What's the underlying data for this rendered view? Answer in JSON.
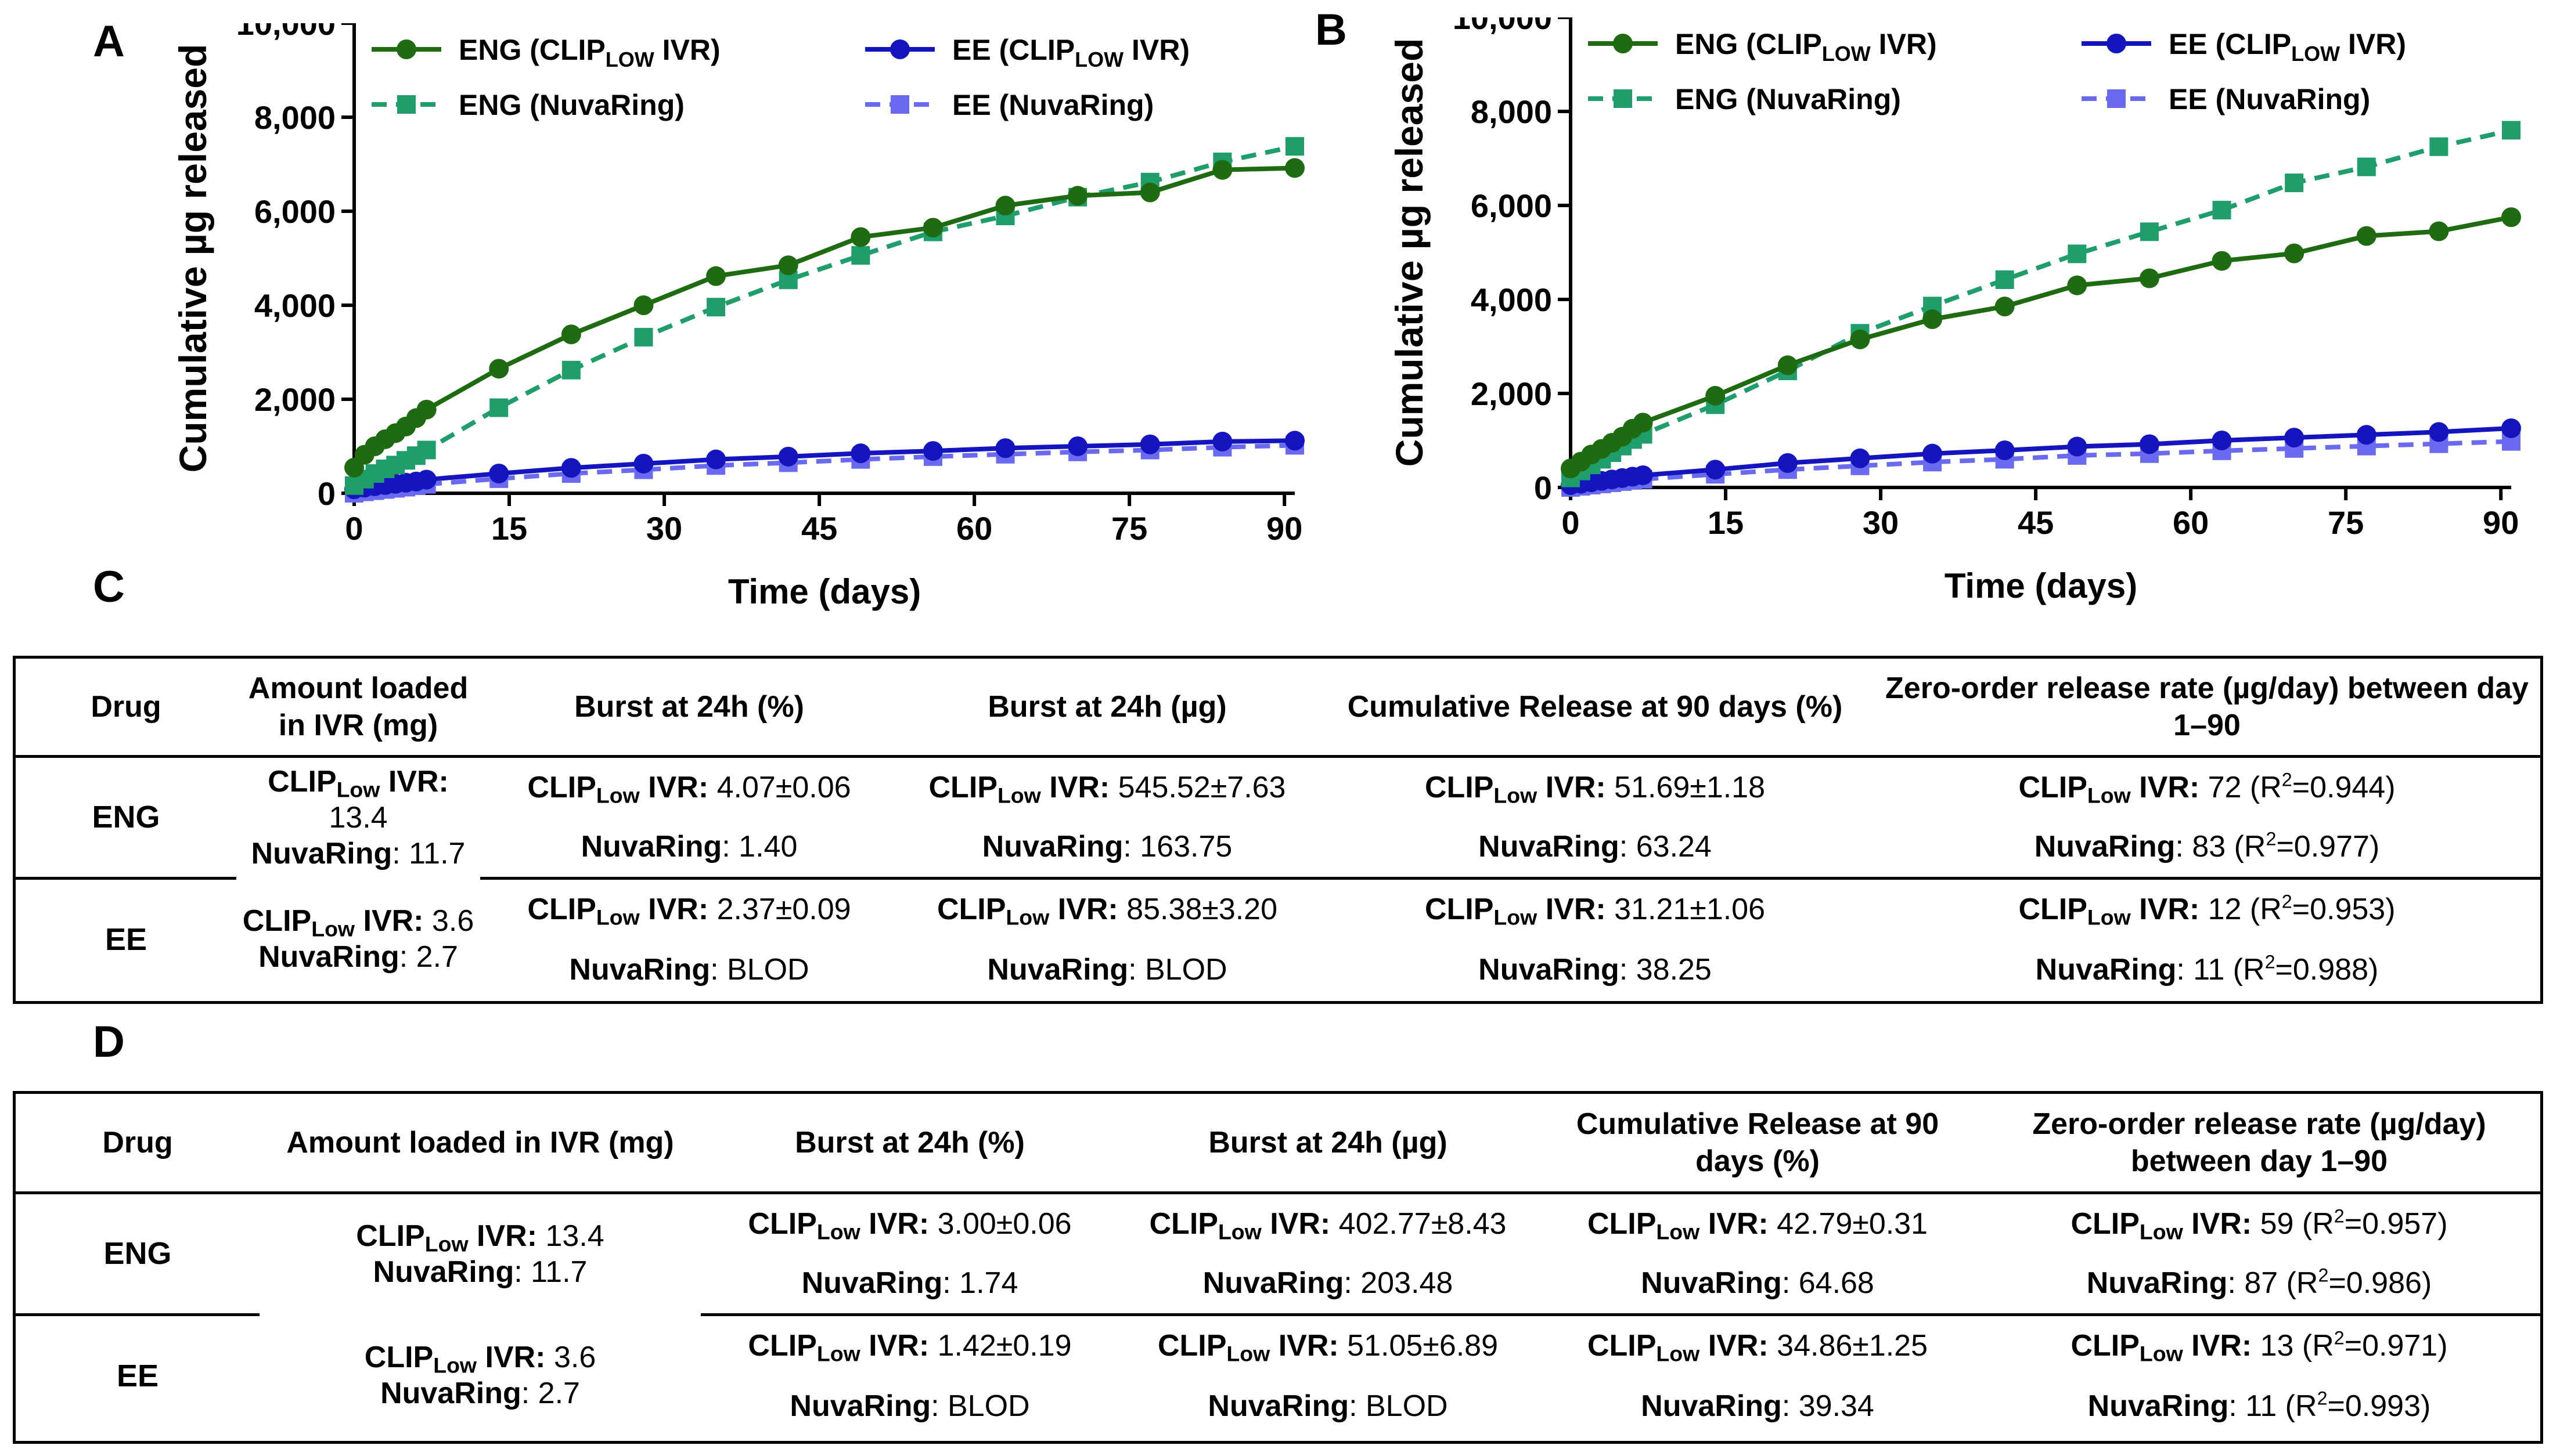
{
  "panels": {
    "a": "A",
    "b": "B",
    "c": "C",
    "d": "D"
  },
  "chart_data": [
    {
      "type": "line",
      "panel": "A",
      "xlabel": "Time (days)",
      "ylabel": "Cumulative µg released",
      "xlim": [
        0,
        91
      ],
      "ylim": [
        0,
        10000
      ],
      "xticks": [
        0,
        15,
        30,
        45,
        60,
        75,
        90
      ],
      "xtick_labels": [
        "0",
        "15",
        "30",
        "45",
        "60",
        "75",
        "90"
      ],
      "yticks": [
        0,
        2000,
        4000,
        6000,
        8000,
        10000
      ],
      "ytick_labels": [
        "0",
        "2,000",
        "4,000",
        "6,000",
        "8,000",
        "10,000"
      ],
      "legend": {
        "placement": "top",
        "entries": [
          {
            "series": 0,
            "main": "ENG (CLIP",
            "sub": "LOW",
            "post": " IVR)"
          },
          {
            "series": 2,
            "main": "EE (CLIP",
            "sub": "LOW",
            "post": " IVR)"
          },
          {
            "series": 1,
            "main": "ENG (NuvaRing)",
            "sub": "",
            "post": ""
          },
          {
            "series": 3,
            "main": "EE (NuvaRing)",
            "sub": "",
            "post": ""
          }
        ]
      },
      "series": [
        {
          "name": "ENG (CLIPLOW IVR)",
          "color": "#1e6b12",
          "marker": "circle",
          "dash": false,
          "x": [
            0,
            1,
            2,
            3,
            4,
            5,
            6,
            7,
            14,
            21,
            28,
            35,
            42,
            49,
            56,
            63,
            70,
            77,
            84,
            91
          ],
          "y": [
            546,
            820,
            1000,
            1150,
            1280,
            1420,
            1600,
            1780,
            2650,
            3380,
            4000,
            4620,
            4850,
            5450,
            5650,
            6120,
            6330,
            6400,
            6880,
            6920
          ]
        },
        {
          "name": "ENG (NuvaRing)",
          "color": "#1f9e6b",
          "marker": "square",
          "dash": true,
          "x": [
            0,
            1,
            2,
            3,
            4,
            5,
            6,
            7,
            14,
            21,
            28,
            35,
            42,
            49,
            56,
            63,
            70,
            77,
            84,
            91
          ],
          "y": [
            164,
            300,
            420,
            520,
            600,
            700,
            800,
            920,
            1820,
            2620,
            3320,
            3960,
            4540,
            5060,
            5560,
            5900,
            6300,
            6620,
            7050,
            7380
          ]
        },
        {
          "name": "EE (CLIPLOW IVR)",
          "color": "#1515c0",
          "marker": "circle",
          "dash": false,
          "x": [
            0,
            1,
            2,
            3,
            4,
            5,
            6,
            7,
            14,
            21,
            28,
            35,
            42,
            49,
            56,
            63,
            70,
            77,
            84,
            91
          ],
          "y": [
            85,
            120,
            150,
            175,
            200,
            225,
            250,
            290,
            420,
            540,
            630,
            720,
            780,
            850,
            900,
            960,
            1000,
            1040,
            1100,
            1120
          ]
        },
        {
          "name": "EE (NuvaRing)",
          "color": "#6a6af0",
          "marker": "square",
          "dash": true,
          "x": [
            0,
            1,
            2,
            3,
            4,
            5,
            6,
            7,
            14,
            21,
            28,
            35,
            42,
            49,
            56,
            63,
            70,
            77,
            84,
            91
          ],
          "y": [
            0,
            30,
            55,
            80,
            105,
            130,
            160,
            190,
            310,
            420,
            500,
            590,
            650,
            720,
            780,
            830,
            880,
            920,
            980,
            1020
          ]
        }
      ]
    },
    {
      "type": "line",
      "panel": "B",
      "xlabel": "Time (days)",
      "ylabel": "Cumulative µg released",
      "xlim": [
        0,
        91
      ],
      "ylim": [
        0,
        10000
      ],
      "xticks": [
        0,
        15,
        30,
        45,
        60,
        75,
        90
      ],
      "xtick_labels": [
        "0",
        "15",
        "30",
        "45",
        "60",
        "75",
        "90"
      ],
      "yticks": [
        0,
        2000,
        4000,
        6000,
        8000,
        10000
      ],
      "ytick_labels": [
        "0",
        "2,000",
        "4,000",
        "6,000",
        "8,000",
        "10,000"
      ],
      "legend": {
        "placement": "top",
        "entries": [
          {
            "series": 0,
            "main": "ENG (CLIP",
            "sub": "LOW",
            "post": " IVR)"
          },
          {
            "series": 2,
            "main": "EE (CLIP",
            "sub": "LOW",
            "post": " IVR)"
          },
          {
            "series": 1,
            "main": "ENG (NuvaRing)",
            "sub": "",
            "post": ""
          },
          {
            "series": 3,
            "main": "EE (NuvaRing)",
            "sub": "",
            "post": ""
          }
        ]
      },
      "series": [
        {
          "name": "ENG (CLIPLOW IVR)",
          "color": "#1e6b12",
          "marker": "circle",
          "dash": false,
          "x": [
            0,
            1,
            2,
            3,
            4,
            5,
            6,
            7,
            14,
            21,
            28,
            35,
            42,
            49,
            56,
            63,
            70,
            77,
            84,
            91
          ],
          "y": [
            403,
            550,
            700,
            820,
            950,
            1080,
            1250,
            1380,
            1950,
            2600,
            3150,
            3580,
            3850,
            4300,
            4450,
            4820,
            4980,
            5350,
            5450,
            5750
          ]
        },
        {
          "name": "ENG (NuvaRing)",
          "color": "#1f9e6b",
          "marker": "square",
          "dash": true,
          "x": [
            0,
            1,
            2,
            3,
            4,
            5,
            6,
            7,
            14,
            21,
            28,
            35,
            42,
            49,
            56,
            63,
            70,
            77,
            84,
            91
          ],
          "y": [
            203,
            350,
            480,
            600,
            740,
            880,
            1020,
            1130,
            1760,
            2480,
            3280,
            3860,
            4420,
            4970,
            5440,
            5900,
            6480,
            6820,
            7250,
            7600
          ]
        },
        {
          "name": "EE (CLIPLOW IVR)",
          "color": "#1515c0",
          "marker": "circle",
          "dash": false,
          "x": [
            0,
            1,
            2,
            3,
            4,
            5,
            6,
            7,
            14,
            21,
            28,
            35,
            42,
            49,
            56,
            63,
            70,
            77,
            84,
            91
          ],
          "y": [
            51,
            80,
            110,
            140,
            170,
            200,
            230,
            260,
            380,
            520,
            620,
            720,
            790,
            870,
            920,
            1000,
            1060,
            1120,
            1180,
            1260
          ]
        },
        {
          "name": "EE (NuvaRing)",
          "color": "#6a6af0",
          "marker": "square",
          "dash": true,
          "x": [
            0,
            1,
            2,
            3,
            4,
            5,
            6,
            7,
            14,
            21,
            28,
            35,
            42,
            49,
            56,
            63,
            70,
            77,
            84,
            91
          ],
          "y": [
            0,
            25,
            50,
            75,
            100,
            125,
            150,
            175,
            280,
            380,
            460,
            540,
            600,
            680,
            720,
            780,
            830,
            880,
            930,
            980
          ]
        }
      ]
    }
  ],
  "tables": {
    "c": {
      "headers": [
        "Drug",
        "Amount loaded in IVR (mg)",
        "Burst at 24h (%)",
        "Burst at 24h (µg)",
        "Cumulative Release at 90 days (%)",
        "Zero-order release rate (µg/day) between day 1–90"
      ],
      "drugs": [
        "ENG",
        "EE"
      ],
      "clip_main": "CLIP",
      "clip_sub": "Low",
      "clip_post": " IVR:",
      "nuva": "NuvaRing",
      "eng": {
        "amount_clip": " 13.4",
        "amount_nuva": ": 11.7",
        "clip": [
          " 4.07±0.06",
          " 545.52±7.63",
          " 51.69±1.18",
          " 72 (R2=0.944)"
        ],
        "nuva": [
          ": 1.40",
          ": 163.75",
          ": 63.24",
          ": 83 (R2=0.977)"
        ]
      },
      "ee": {
        "amount_clip": " 3.6",
        "amount_nuva": ": 2.7",
        "clip": [
          " 2.37±0.09",
          " 85.38±3.20",
          " 31.21±1.06",
          " 12 (R2=0.953)"
        ],
        "nuva": [
          ": BLOD",
          ": BLOD",
          ": 38.25",
          ": 11 (R2=0.988)"
        ]
      }
    },
    "d": {
      "headers": [
        "Drug",
        "Amount loaded in IVR (mg)",
        "Burst at 24h (%)",
        "Burst at 24h (µg)",
        "Cumulative Release at 90 days (%)",
        "Zero-order release rate (µg/day) between day 1–90"
      ],
      "drugs": [
        "ENG",
        "EE"
      ],
      "clip_main": "CLIP",
      "clip_sub": "Low",
      "clip_post": " IVR:",
      "nuva": "NuvaRing",
      "eng": {
        "amount_clip": " 13.4",
        "amount_nuva": ": 11.7",
        "clip": [
          " 3.00±0.06",
          " 402.77±8.43",
          " 42.79±0.31",
          " 59 (R2=0.957)"
        ],
        "nuva": [
          ": 1.74",
          ": 203.48",
          ": 64.68",
          ": 87 (R2=0.986)"
        ]
      },
      "ee": {
        "amount_clip": " 3.6",
        "amount_nuva": ": 2.7",
        "clip": [
          " 1.42±0.19",
          " 51.05±6.89",
          " 34.86±1.25",
          " 13 (R2=0.971)"
        ],
        "nuva": [
          ": BLOD",
          ": BLOD",
          ": 39.34",
          ": 11 (R2=0.993)"
        ]
      }
    }
  }
}
